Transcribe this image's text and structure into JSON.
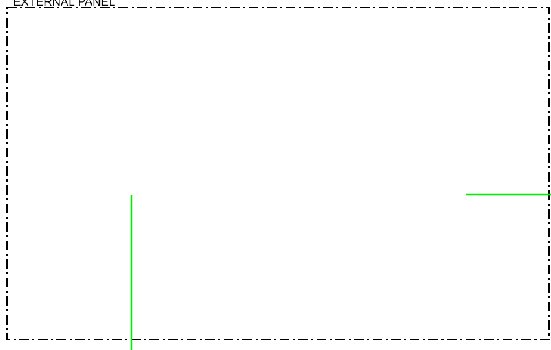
{
  "panel": {
    "label": "EXTERNAL PANEL"
  },
  "colors": {
    "background": "#ffffff",
    "panel_border": "#000000",
    "wire": "#00ee00"
  }
}
